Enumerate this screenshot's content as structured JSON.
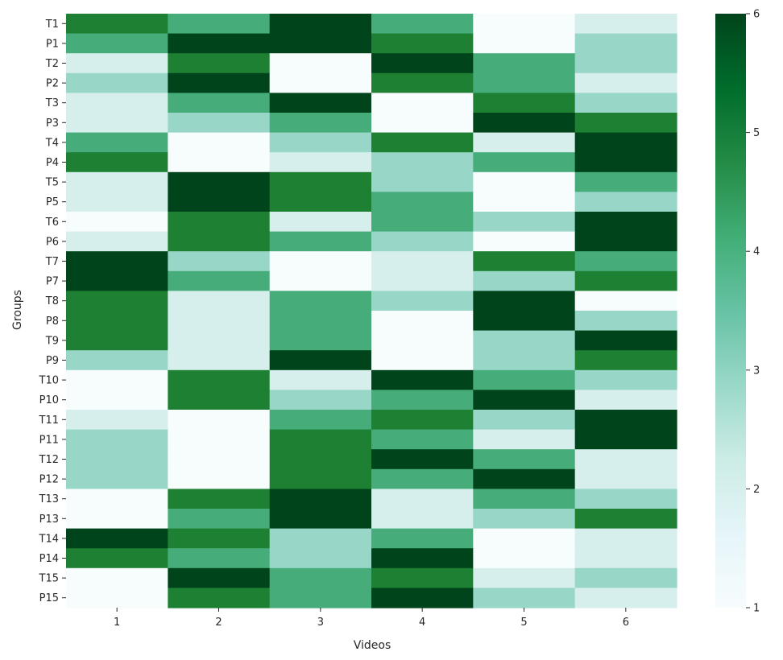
{
  "chart_data": {
    "type": "heatmap",
    "title": "",
    "xlabel": "Videos",
    "ylabel": "Groups",
    "x_categories": [
      "1",
      "2",
      "3",
      "4",
      "5",
      "6"
    ],
    "y_categories": [
      "T1",
      "P1",
      "T2",
      "P2",
      "T3",
      "P3",
      "T4",
      "P4",
      "T5",
      "P5",
      "T6",
      "P6",
      "T7",
      "P7",
      "T8",
      "P8",
      "T9",
      "P9",
      "T10",
      "P10",
      "T11",
      "P11",
      "T12",
      "P12",
      "T13",
      "P13",
      "T14",
      "P14",
      "T15",
      "P15"
    ],
    "values": [
      [
        5,
        4,
        6,
        4,
        1,
        2
      ],
      [
        4,
        6,
        6,
        5,
        1,
        3
      ],
      [
        2,
        5,
        1,
        6,
        4,
        3
      ],
      [
        3,
        6,
        1,
        5,
        4,
        2
      ],
      [
        2,
        4,
        6,
        1,
        5,
        3
      ],
      [
        2,
        3,
        4,
        1,
        6,
        5
      ],
      [
        4,
        1,
        3,
        5,
        2,
        6
      ],
      [
        5,
        1,
        2,
        3,
        4,
        6
      ],
      [
        2,
        6,
        5,
        3,
        1,
        4
      ],
      [
        2,
        6,
        5,
        4,
        1,
        3
      ],
      [
        1,
        5,
        2,
        4,
        3,
        6
      ],
      [
        2,
        5,
        4,
        3,
        1,
        6
      ],
      [
        6,
        3,
        1,
        2,
        5,
        4
      ],
      [
        6,
        4,
        1,
        2,
        3,
        5
      ],
      [
        5,
        2,
        4,
        3,
        6,
        1
      ],
      [
        5,
        2,
        4,
        1,
        6,
        3
      ],
      [
        5,
        2,
        4,
        1,
        3,
        6
      ],
      [
        3,
        2,
        6,
        1,
        3,
        5
      ],
      [
        1,
        5,
        2,
        6,
        4,
        3
      ],
      [
        1,
        5,
        3,
        4,
        6,
        2
      ],
      [
        2,
        1,
        4,
        5,
        3,
        6
      ],
      [
        3,
        1,
        5,
        4,
        2,
        6
      ],
      [
        3,
        1,
        5,
        6,
        4,
        2
      ],
      [
        3,
        1,
        5,
        4,
        6,
        2
      ],
      [
        1,
        5,
        6,
        2,
        4,
        3
      ],
      [
        1,
        4,
        6,
        2,
        3,
        5
      ],
      [
        6,
        5,
        3,
        4,
        1,
        2
      ],
      [
        5,
        4,
        3,
        6,
        1,
        2
      ],
      [
        1,
        6,
        4,
        5,
        2,
        3
      ],
      [
        1,
        5,
        4,
        6,
        3,
        2
      ]
    ],
    "colorbar": {
      "min": 1,
      "max": 6,
      "ticks": [
        "1",
        "2",
        "3",
        "4",
        "5",
        "6"
      ]
    },
    "colormap": "BuGn",
    "palette": {
      "1": "#f7fcfd",
      "2": "#d7efec",
      "3": "#98d6c7",
      "4": "#46ac7a",
      "5": "#1d8033",
      "6": "#00441b"
    },
    "colorbar_stops": [
      "#f7fcfd",
      "#e5f5f9",
      "#ccece6",
      "#99d8c9",
      "#66c2a4",
      "#41ae76",
      "#238b45",
      "#006d2c",
      "#00441b"
    ]
  }
}
